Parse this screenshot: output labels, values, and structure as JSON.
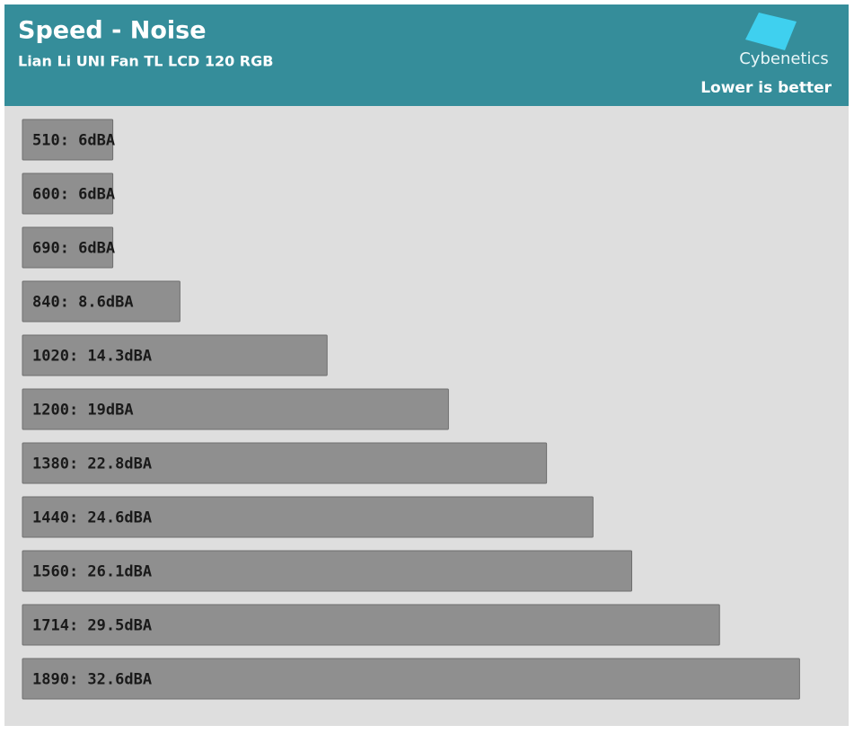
{
  "chart_data": {
    "type": "bar",
    "orientation": "horizontal",
    "title": "Speed - Noise",
    "subtitle": "Lian Li UNI Fan TL LCD 120 RGB",
    "brand": "Cybenetics",
    "note": "Lower is better",
    "values": [
      6,
      6,
      6,
      8.6,
      14.3,
      19,
      22.8,
      24.6,
      26.1,
      29.5,
      32.6
    ],
    "value_labels": [
      "510: 6dBA",
      "600: 6dBA",
      "690: 6dBA",
      "840: 8.6dBA",
      "1020: 14.3dBA",
      "1200: 19dBA",
      "1380: 22.8dBA",
      "1440: 24.6dBA",
      "1560: 26.1dBA",
      "1714: 29.5dBA",
      "1890: 32.6dBA"
    ],
    "color": "#8f8f8f",
    "xlim": [
      2.5,
      34.5
    ]
  }
}
